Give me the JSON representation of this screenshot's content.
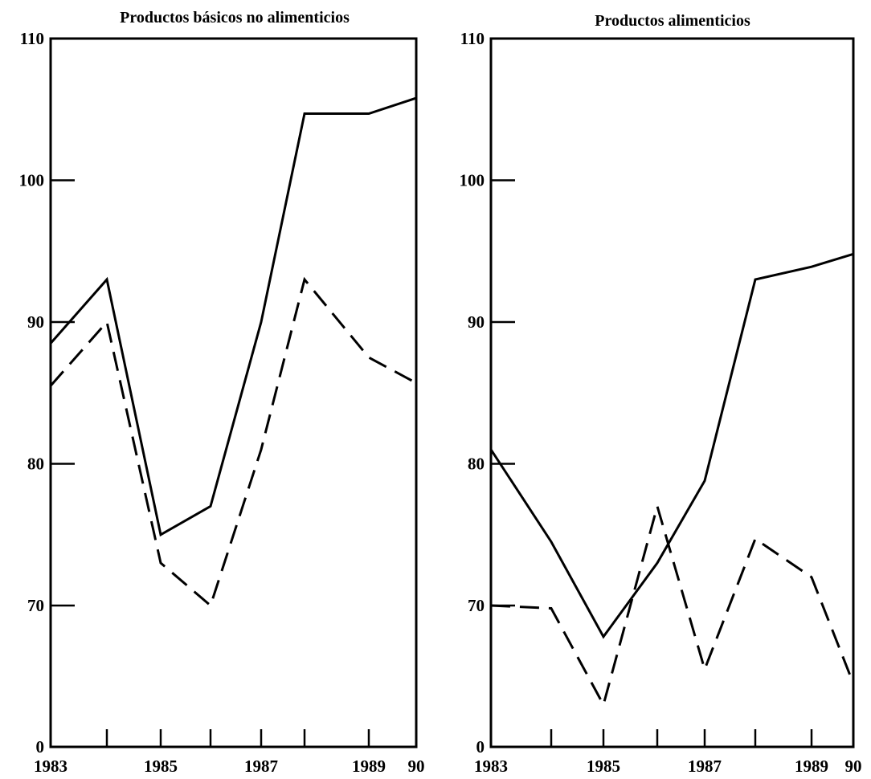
{
  "chart_data": [
    {
      "type": "line",
      "title": "Productos básicos no alimenticios",
      "xlabel": "",
      "ylabel": "",
      "x": [
        1983,
        1984,
        1985,
        1986,
        1987,
        1988,
        1989,
        1990
      ],
      "x_tick_labels": [
        "1983",
        "",
        "1985",
        "",
        "1987",
        "",
        "1989",
        "90"
      ],
      "y_tick_labels": [
        "110",
        "100",
        "90",
        "80",
        "70",
        "0"
      ],
      "ylim": [
        0,
        110
      ],
      "y_axis_broken": true,
      "series": [
        {
          "style": "solid",
          "values": [
            88.5,
            93,
            75,
            77,
            90,
            104.7,
            104.7,
            105.8
          ]
        },
        {
          "style": "dashed",
          "values": [
            85.5,
            90,
            73,
            70,
            81,
            93,
            87.5,
            85.7
          ]
        }
      ],
      "grid": false
    },
    {
      "type": "line",
      "title": "Productos alimenticios",
      "xlabel": "",
      "ylabel": "",
      "x": [
        1983,
        1984,
        1985,
        1986,
        1987,
        1988,
        1989,
        1990
      ],
      "x_tick_labels": [
        "1983",
        "",
        "1985",
        "",
        "1987",
        "",
        "1989",
        "90"
      ],
      "y_tick_labels": [
        "110",
        "100",
        "90",
        "80",
        "70",
        "0"
      ],
      "ylim": [
        0,
        110
      ],
      "y_axis_broken": true,
      "series": [
        {
          "style": "solid",
          "values": [
            81,
            74.5,
            67.8,
            73,
            78.8,
            93,
            93.9,
            94.8
          ]
        },
        {
          "style": "dashed",
          "values": [
            70,
            69.8,
            63,
            77,
            65.5,
            74.7,
            72,
            64.5
          ]
        }
      ],
      "grid": false
    }
  ]
}
